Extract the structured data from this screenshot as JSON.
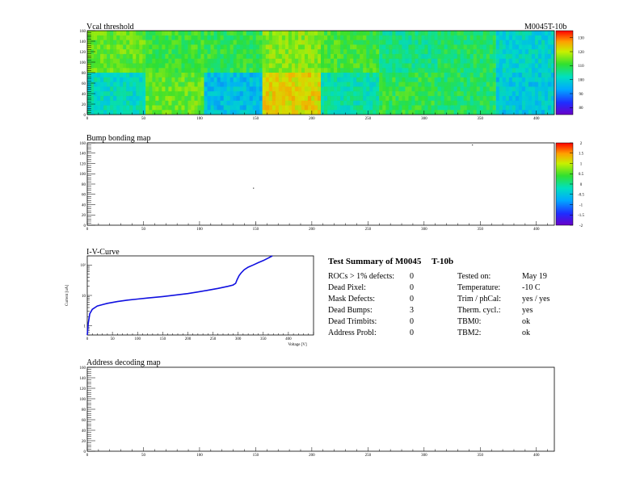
{
  "module": "M0045T-10b",
  "chart_data": [
    {
      "type": "heatmap",
      "title": "Vcal threshold",
      "id_label": "M0045T-10b",
      "x_ticks": [
        "0",
        "50",
        "100",
        "150",
        "200",
        "250",
        "300",
        "350",
        "400"
      ],
      "y_ticks": [
        "0",
        "20",
        "40",
        "60",
        "80",
        "100",
        "120",
        "140",
        "160"
      ],
      "xlim": [
        0,
        416
      ],
      "ylim": [
        0,
        160
      ],
      "colorbar_ticks": [
        "80",
        "90",
        "100",
        "110",
        "120",
        "130"
      ],
      "colorbar_range": [
        75,
        135
      ],
      "roc_grid": {
        "cols": 8,
        "rows": 2
      },
      "roc_mean_top": [
        112,
        109,
        108,
        114,
        110,
        104,
        106,
        99
      ],
      "roc_mean_bottom": [
        100,
        112,
        96,
        121,
        102,
        108,
        106,
        97
      ]
    },
    {
      "type": "heatmap",
      "title": "Bump bonding map",
      "x_ticks": [
        "0",
        "50",
        "100",
        "150",
        "200",
        "250",
        "300",
        "350",
        "400"
      ],
      "y_ticks": [
        "0",
        "20",
        "40",
        "60",
        "80",
        "100",
        "120",
        "140",
        "160"
      ],
      "xlim": [
        0,
        416
      ],
      "ylim": [
        0,
        160
      ],
      "colorbar_ticks": [
        "-2",
        "-1.5",
        "-1",
        "-0.5",
        "0",
        "0.5",
        "1",
        "1.5",
        "2"
      ],
      "colorbar_range": [
        -2,
        2
      ],
      "dead_bumps": [
        {
          "x": 343,
          "y": 156
        },
        {
          "x": 148,
          "y": 72
        },
        {
          "x": 150,
          "y": 4
        }
      ]
    },
    {
      "type": "line",
      "title": "I-V-Curve",
      "xlabel": "Voltage [V]",
      "ylabel": "Current [uA]",
      "log_y": true,
      "xlim": [
        0,
        450
      ],
      "ylim": [
        0.5,
        200
      ],
      "x_ticks": [
        "0",
        "50",
        "100",
        "150",
        "200",
        "250",
        "300",
        "350",
        "400"
      ],
      "y_ticks": [
        "1",
        "10",
        "10²"
      ],
      "series": [
        {
          "x": [
            0,
            2,
            5,
            10,
            20,
            40,
            60,
            80,
            100,
            120,
            150,
            180,
            200,
            220,
            240,
            260,
            280,
            290,
            295,
            298,
            302,
            306,
            312,
            320,
            330,
            340,
            350,
            360,
            368
          ],
          "y": [
            0.5,
            1.2,
            2.5,
            3.5,
            4.5,
            5.5,
            6.3,
            7.0,
            7.6,
            8.2,
            9.2,
            10.5,
            11.5,
            13.0,
            14.8,
            17.0,
            20.0,
            22.0,
            25.0,
            33.0,
            45.0,
            55.0,
            70.0,
            85.0,
            100.0,
            120.0,
            140.0,
            170.0,
            200.0
          ]
        }
      ]
    },
    {
      "type": "heatmap",
      "title": "Address decoding map",
      "x_ticks": [
        "0",
        "50",
        "100",
        "150",
        "200",
        "250",
        "300",
        "350",
        "400"
      ],
      "y_ticks": [
        "0",
        "20",
        "40",
        "60",
        "80",
        "100",
        "120",
        "140",
        "160"
      ],
      "xlim": [
        0,
        416
      ],
      "ylim": [
        0,
        160
      ]
    }
  ],
  "summary": {
    "title_prefix": "Test Summary of M0045",
    "title_suffix": "T-10b",
    "left_rows": [
      {
        "label": "ROCs > 1% defects:",
        "value": "0"
      },
      {
        "label": "Dead Pixel:",
        "value": "0"
      },
      {
        "label": "Mask Defects:",
        "value": "0"
      },
      {
        "label": "Dead Bumps:",
        "value": "3"
      },
      {
        "label": "Dead Trimbits:",
        "value": "0"
      },
      {
        "label": "Address Probl:",
        "value": "0"
      }
    ],
    "right_rows": [
      {
        "label": "Tested on:",
        "value": "May 19"
      },
      {
        "label": "Temperature:",
        "value": "-10 C"
      },
      {
        "label": "Trim / phCal:",
        "value": "yes / yes"
      },
      {
        "label": "Therm. cycl.:",
        "value": "yes"
      },
      {
        "label": "TBM0:",
        "value": "ok"
      },
      {
        "label": "TBM2:",
        "value": "ok"
      }
    ]
  }
}
